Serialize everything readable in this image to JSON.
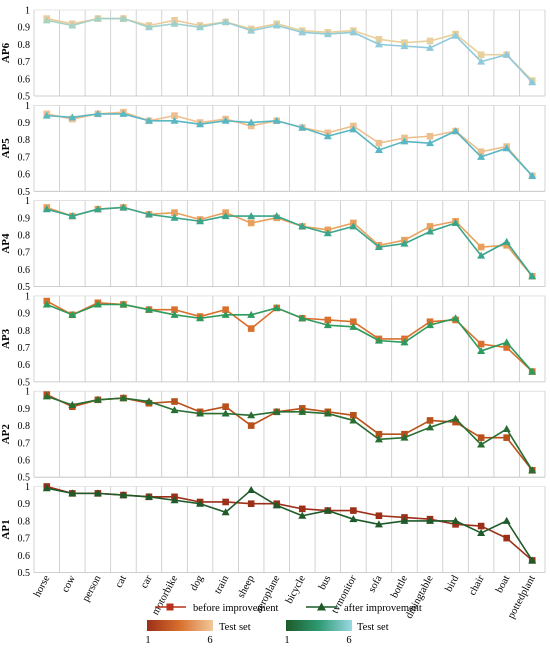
{
  "chart_data": {
    "type": "line",
    "categories": [
      "horse",
      "cow",
      "person",
      "cat",
      "car",
      "motorbike",
      "dog",
      "train",
      "sheep",
      "aeroplane",
      "bicycle",
      "bus",
      "tvmonitor",
      "sofa",
      "bottle",
      "diningtable",
      "bird",
      "chair",
      "boat",
      "pottedplant"
    ],
    "ylim": [
      0.5,
      1.0
    ],
    "yticks": [
      "0.5",
      "0.6",
      "0.7",
      "0.8",
      "0.9",
      "1"
    ],
    "grid": true,
    "panels": [
      {
        "label": "AP6",
        "before": [
          0.95,
          0.92,
          0.95,
          0.95,
          0.91,
          0.94,
          0.91,
          0.93,
          0.89,
          0.92,
          0.88,
          0.87,
          0.88,
          0.83,
          0.81,
          0.82,
          0.86,
          0.74,
          0.74,
          0.59
        ],
        "after": [
          0.94,
          0.91,
          0.95,
          0.95,
          0.9,
          0.92,
          0.9,
          0.93,
          0.88,
          0.91,
          0.87,
          0.86,
          0.87,
          0.8,
          0.79,
          0.78,
          0.85,
          0.7,
          0.74,
          0.58
        ],
        "before_colors": [
          "#f0c99b",
          "#e8cf9c",
          "#e6d19c"
        ],
        "after_colors": [
          "#a8d4c0",
          "#93cdd8",
          "#8ec8dc"
        ]
      },
      {
        "label": "AP5",
        "before": [
          0.95,
          0.92,
          0.95,
          0.96,
          0.91,
          0.94,
          0.9,
          0.92,
          0.88,
          0.91,
          0.87,
          0.84,
          0.88,
          0.78,
          0.81,
          0.82,
          0.85,
          0.73,
          0.76,
          0.59
        ],
        "after": [
          0.94,
          0.93,
          0.95,
          0.95,
          0.91,
          0.91,
          0.89,
          0.91,
          0.9,
          0.91,
          0.87,
          0.82,
          0.86,
          0.74,
          0.79,
          0.78,
          0.85,
          0.7,
          0.75,
          0.59
        ],
        "before_colors": [
          "#f3bd8d",
          "#e9c08e"
        ],
        "after_colors": [
          "#5ab8c0",
          "#57b6c4"
        ]
      },
      {
        "label": "AP4",
        "before": [
          0.96,
          0.91,
          0.95,
          0.96,
          0.92,
          0.93,
          0.89,
          0.93,
          0.87,
          0.9,
          0.85,
          0.83,
          0.87,
          0.74,
          0.77,
          0.85,
          0.88,
          0.73,
          0.74,
          0.56
        ],
        "after": [
          0.95,
          0.91,
          0.95,
          0.96,
          0.92,
          0.9,
          0.88,
          0.91,
          0.91,
          0.91,
          0.85,
          0.81,
          0.85,
          0.73,
          0.75,
          0.82,
          0.87,
          0.68,
          0.76,
          0.56
        ],
        "before_colors": [
          "#e9a05c"
        ],
        "after_colors": [
          "#3aa58a"
        ]
      },
      {
        "label": "AP3",
        "before": [
          0.97,
          0.89,
          0.96,
          0.95,
          0.92,
          0.92,
          0.88,
          0.92,
          0.81,
          0.93,
          0.87,
          0.86,
          0.85,
          0.75,
          0.75,
          0.85,
          0.86,
          0.72,
          0.7,
          0.56
        ],
        "after": [
          0.95,
          0.89,
          0.95,
          0.95,
          0.92,
          0.89,
          0.87,
          0.89,
          0.89,
          0.93,
          0.87,
          0.83,
          0.82,
          0.74,
          0.73,
          0.83,
          0.87,
          0.68,
          0.73,
          0.56
        ],
        "before_colors": [
          "#d9702e"
        ],
        "after_colors": [
          "#2e9a5c"
        ]
      },
      {
        "label": "AP2",
        "before": [
          0.98,
          0.91,
          0.95,
          0.96,
          0.93,
          0.94,
          0.88,
          0.91,
          0.8,
          0.88,
          0.9,
          0.88,
          0.86,
          0.75,
          0.75,
          0.83,
          0.82,
          0.73,
          0.73,
          0.54
        ],
        "after": [
          0.97,
          0.92,
          0.95,
          0.96,
          0.94,
          0.89,
          0.87,
          0.87,
          0.86,
          0.88,
          0.88,
          0.87,
          0.83,
          0.72,
          0.73,
          0.79,
          0.84,
          0.69,
          0.78,
          0.54
        ],
        "before_colors": [
          "#b8501a"
        ],
        "after_colors": [
          "#286e33"
        ]
      },
      {
        "label": "AP1",
        "before": [
          1.0,
          0.96,
          0.96,
          0.95,
          0.94,
          0.94,
          0.91,
          0.91,
          0.9,
          0.9,
          0.87,
          0.86,
          0.86,
          0.83,
          0.82,
          0.81,
          0.78,
          0.77,
          0.7,
          0.57
        ],
        "after": [
          0.99,
          0.96,
          0.96,
          0.95,
          0.94,
          0.92,
          0.9,
          0.85,
          0.98,
          0.89,
          0.83,
          0.86,
          0.81,
          0.78,
          0.8,
          0.8,
          0.8,
          0.73,
          0.8,
          0.57
        ],
        "before_colors": [
          "#9c2f18"
        ],
        "after_colors": [
          "#1e5a2a"
        ]
      }
    ],
    "legend": {
      "placement": "bottom",
      "entries": [
        {
          "name": "before improvement",
          "color": "#b8321c",
          "marker": "square"
        },
        {
          "name": "after improvement",
          "color": "#1e5a2a",
          "marker": "triangle"
        }
      ],
      "gradients": [
        {
          "label": "Test set",
          "start": "1",
          "end": "6",
          "colors": [
            "#9c2f18",
            "#d9702e",
            "#f0c99b"
          ]
        },
        {
          "label": "Test set",
          "start": "1",
          "end": "6",
          "colors": [
            "#1e5a2a",
            "#2e9a72",
            "#9ad8e4"
          ]
        }
      ]
    }
  }
}
